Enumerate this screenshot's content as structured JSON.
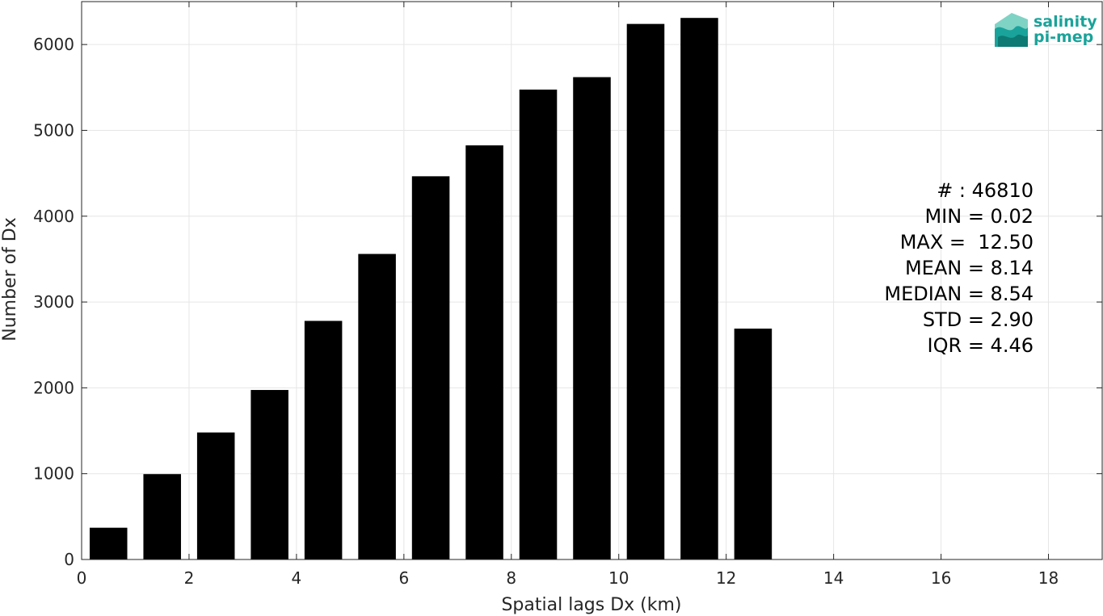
{
  "chart_data": {
    "type": "bar",
    "x": [
      0.5,
      1.5,
      2.5,
      3.5,
      4.5,
      5.5,
      6.5,
      7.5,
      8.5,
      9.5,
      10.5,
      11.5,
      12.5
    ],
    "values": [
      370,
      995,
      1480,
      1975,
      2780,
      3560,
      4465,
      4825,
      5475,
      5620,
      6240,
      6310,
      2690
    ],
    "bar_width": 0.7,
    "xlim": [
      0,
      19
    ],
    "ylim": [
      0,
      6500
    ],
    "xticks": [
      0,
      2,
      4,
      6,
      8,
      10,
      12,
      14,
      16,
      18
    ],
    "yticks": [
      0,
      1000,
      2000,
      3000,
      4000,
      5000,
      6000
    ],
    "xlabel": "Spatial lags Dx (km)",
    "ylabel": "Number of Dx",
    "bar_color": "#000000",
    "grid": true,
    "annotations": [
      "# : 46810",
      "MIN = 0.02",
      "MAX =  12.50",
      "MEAN = 8.14",
      "MEDIAN = 8.54",
      "STD = 2.90",
      "IQR = 4.46"
    ]
  },
  "logo": {
    "line1": "salinity",
    "line2": "pi-mep",
    "colors": [
      "#1aa39a",
      "#7fd3c5",
      "#0d7a73"
    ]
  }
}
